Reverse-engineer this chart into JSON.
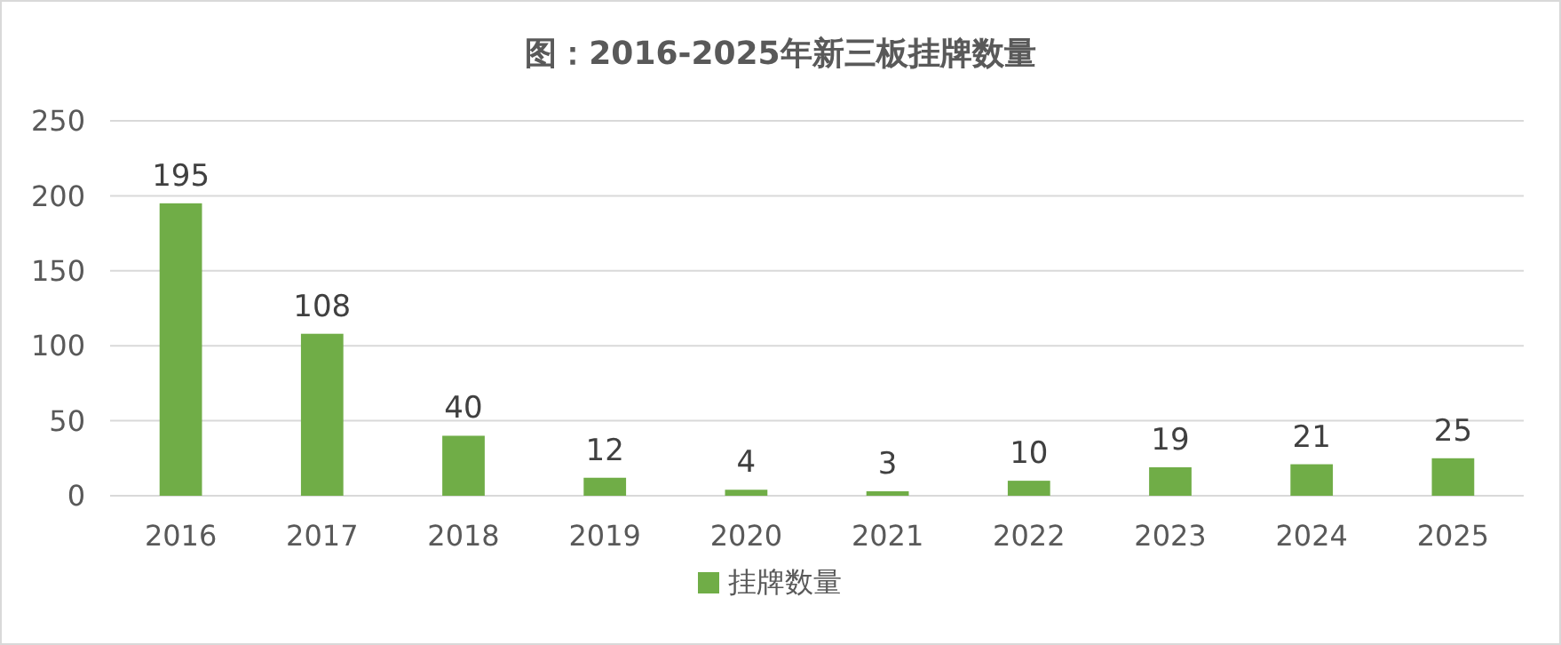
{
  "chart_data": {
    "type": "bar",
    "title": "图：2016-2025年新三板挂牌数量",
    "categories": [
      "2016",
      "2017",
      "2018",
      "2019",
      "2020",
      "2021",
      "2022",
      "2023",
      "2024",
      "2025"
    ],
    "series": [
      {
        "name": "挂牌数量",
        "color": "#70ad47",
        "values": [
          195,
          108,
          40,
          12,
          4,
          3,
          10,
          19,
          21,
          25
        ]
      }
    ],
    "ylim": [
      0,
      250
    ],
    "yticks": [
      0,
      50,
      100,
      150,
      200,
      250
    ],
    "grid": "y",
    "legend": "bottom",
    "data_labels": true
  }
}
